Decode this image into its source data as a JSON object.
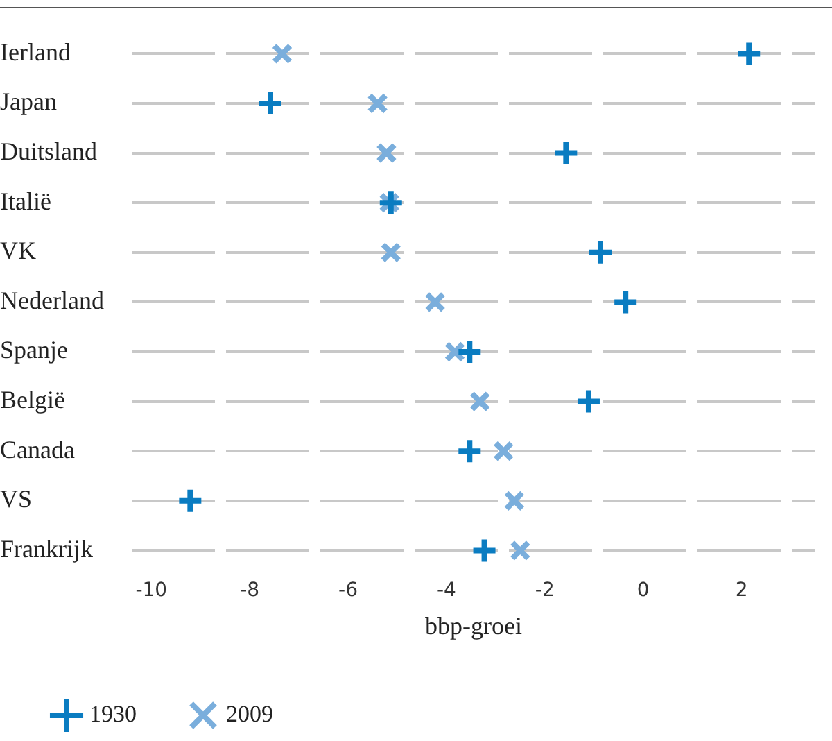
{
  "chart_data": {
    "type": "scatter",
    "xlabel": "bbp-groei",
    "categories": [
      "Ierland",
      "Japan",
      "Duitsland",
      "Italië",
      "VK",
      "Nederland",
      "Spanje",
      "België",
      "Canada",
      "VS",
      "Frankrijk"
    ],
    "series": [
      {
        "name": "1930",
        "color": "#0a7cc1",
        "marker": "cross",
        "values": [
          2.15,
          -7.58,
          -1.57,
          -5.13,
          -0.87,
          -0.36,
          -3.53,
          -1.11,
          -3.53,
          -9.21,
          -3.23
        ]
      },
      {
        "name": "2009",
        "color": "#7aaedc",
        "marker": "x",
        "values": [
          -7.34,
          -5.4,
          -5.22,
          -5.16,
          -5.13,
          -4.23,
          -3.83,
          -3.32,
          -2.84,
          -2.62,
          -2.5
        ]
      }
    ],
    "xlim": [
      -10.4,
      3.5
    ],
    "xticks": [
      -10,
      -8,
      -6,
      -4,
      -2,
      0,
      2
    ],
    "grid": "y",
    "legend": "bottom left",
    "orientation": "horizontal"
  }
}
